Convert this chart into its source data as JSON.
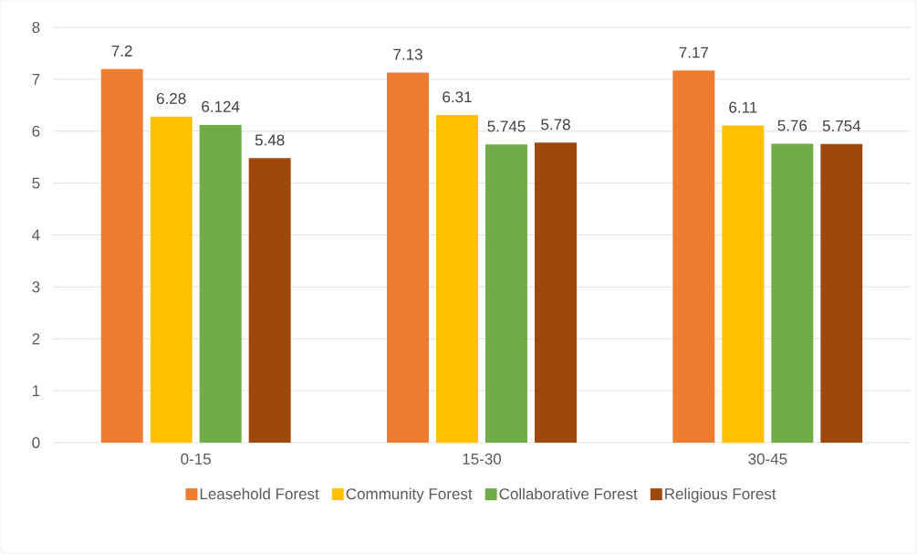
{
  "chart_data": {
    "type": "bar",
    "categories": [
      "0-15",
      "15-30",
      "30-45"
    ],
    "series": [
      {
        "name": "Leasehold Forest",
        "color": "#ed7d31",
        "values": [
          7.2,
          7.13,
          7.17
        ]
      },
      {
        "name": "Community Forest",
        "color": "#ffc000",
        "values": [
          6.28,
          6.31,
          6.11
        ]
      },
      {
        "name": "Collaborative Forest",
        "color": "#70ad47",
        "values": [
          6.124,
          5.745,
          5.76
        ]
      },
      {
        "name": "Religious Forest",
        "color": "#9e480e",
        "values": [
          5.48,
          5.78,
          5.754
        ]
      }
    ],
    "ylim": [
      0,
      8
    ],
    "yticks": [
      0,
      1,
      2,
      3,
      4,
      5,
      6,
      7,
      8
    ],
    "grid": "y",
    "legend": "bottom",
    "data_labels": true
  }
}
